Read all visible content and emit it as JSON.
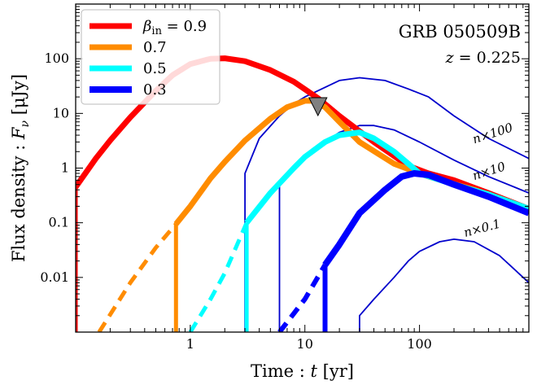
{
  "chart_data": {
    "type": "line",
    "x_scale": "log",
    "y_scale": "log",
    "xlim": [
      0.1,
      900
    ],
    "ylim": [
      0.001,
      1000
    ],
    "xlabel_main": "Time : ",
    "xlabel_var": "t",
    "xlabel_unit": " [yr]",
    "ylabel_main": "Flux density : ",
    "ylabel_var": "F",
    "ylabel_sub": "ν",
    "ylabel_unit": " [μJy]",
    "x_ticks": [
      {
        "value": 1,
        "label": "1"
      },
      {
        "value": 10,
        "label": "10"
      },
      {
        "value": 100,
        "label": "100"
      }
    ],
    "y_ticks": [
      {
        "value": 0.01,
        "label": "0.01"
      },
      {
        "value": 0.1,
        "label": "0.1"
      },
      {
        "value": 1,
        "label": "1"
      },
      {
        "value": 10,
        "label": "10"
      },
      {
        "value": 100,
        "label": "100"
      }
    ],
    "annotations": {
      "grb": "GRB 050509B",
      "redshift_var": "z",
      "redshift_val": " = 0.225"
    },
    "legend": {
      "placement": "top-left",
      "first_prefix": "β",
      "first_sub": "in",
      "first_suffix": " = 0.9"
    },
    "series": [
      {
        "name": "0.9",
        "color": "#ff0000",
        "width": 7,
        "solid": [
          [
            0.1,
            0.45
          ],
          [
            0.15,
            1.5
          ],
          [
            0.2,
            3.2
          ],
          [
            0.3,
            8.5
          ],
          [
            0.5,
            26
          ],
          [
            0.7,
            50
          ],
          [
            1,
            80
          ],
          [
            1.5,
            100
          ],
          [
            2,
            102
          ],
          [
            3,
            90
          ],
          [
            5,
            62
          ],
          [
            8,
            38
          ],
          [
            13,
            19
          ],
          [
            20,
            9
          ],
          [
            40,
            3
          ],
          [
            80,
            1.1
          ],
          [
            120,
            0.8
          ],
          [
            200,
            0.6
          ],
          [
            400,
            0.35
          ],
          [
            900,
            0.18
          ]
        ],
        "dashed": [],
        "drop": [
          [
            0.1,
            0.45
          ],
          [
            0.1,
            0.001
          ]
        ]
      },
      {
        "name": "0.7",
        "color": "#ff8c00",
        "width": 7,
        "solid": [
          [
            0.75,
            0.095
          ],
          [
            1,
            0.2
          ],
          [
            1.5,
            0.65
          ],
          [
            2,
            1.3
          ],
          [
            3,
            3.2
          ],
          [
            5,
            8
          ],
          [
            7,
            13
          ],
          [
            10,
            17
          ],
          [
            12,
            17
          ],
          [
            15,
            13
          ],
          [
            20,
            7
          ],
          [
            30,
            3
          ],
          [
            60,
            1.2
          ],
          [
            120,
            0.7
          ],
          [
            300,
            0.4
          ],
          [
            900,
            0.18
          ]
        ],
        "dashed": [
          [
            0.16,
            0.001
          ],
          [
            0.3,
            0.008
          ],
          [
            0.5,
            0.035
          ],
          [
            0.75,
            0.095
          ]
        ],
        "drop": [
          [
            0.75,
            0.095
          ],
          [
            0.75,
            0.001
          ]
        ]
      },
      {
        "name": "0.5",
        "color": "#00ffff",
        "width": 7,
        "solid": [
          [
            3.1,
            0.1
          ],
          [
            5,
            0.35
          ],
          [
            8,
            1
          ],
          [
            10,
            1.6
          ],
          [
            15,
            3
          ],
          [
            20,
            4
          ],
          [
            30,
            4.5
          ],
          [
            40,
            3.5
          ],
          [
            60,
            2
          ],
          [
            80,
            1.2
          ],
          [
            100,
            0.8
          ],
          [
            200,
            0.5
          ],
          [
            400,
            0.33
          ],
          [
            900,
            0.18
          ]
        ],
        "dashed": [
          [
            1,
            0.001
          ],
          [
            1.5,
            0.004
          ],
          [
            2,
            0.012
          ],
          [
            3.1,
            0.1
          ]
        ],
        "drop": [
          [
            3.1,
            0.1
          ],
          [
            3.1,
            0.001
          ]
        ]
      },
      {
        "name": "0.3",
        "color": "#0000ff",
        "width": 8,
        "solid": [
          [
            15,
            0.017
          ],
          [
            20,
            0.04
          ],
          [
            30,
            0.15
          ],
          [
            50,
            0.4
          ],
          [
            70,
            0.7
          ],
          [
            90,
            0.8
          ],
          [
            120,
            0.75
          ],
          [
            200,
            0.5
          ],
          [
            400,
            0.3
          ],
          [
            900,
            0.15
          ]
        ],
        "dashed": [
          [
            6,
            0.001
          ],
          [
            10,
            0.004
          ],
          [
            15,
            0.017
          ]
        ],
        "drop": [
          [
            15,
            0.017
          ],
          [
            15,
            0.001
          ]
        ]
      }
    ],
    "thin_curves": [
      {
        "label": "n×100",
        "points": [
          [
            3,
            0.001
          ],
          [
            3,
            0.8
          ],
          [
            4,
            3.5
          ],
          [
            6,
            9
          ],
          [
            8,
            15
          ],
          [
            10,
            20
          ],
          [
            15,
            30
          ],
          [
            20,
            40
          ],
          [
            30,
            45
          ],
          [
            50,
            40
          ],
          [
            80,
            28
          ],
          [
            120,
            20
          ],
          [
            200,
            9
          ],
          [
            400,
            3.5
          ],
          [
            900,
            1.5
          ]
        ]
      },
      {
        "label": "n×10",
        "points": [
          [
            6,
            0.001
          ],
          [
            6,
            0.5
          ],
          [
            8,
            1
          ],
          [
            10,
            1.6
          ],
          [
            15,
            3
          ],
          [
            20,
            4.5
          ],
          [
            30,
            6
          ],
          [
            40,
            6
          ],
          [
            60,
            5
          ],
          [
            100,
            3
          ],
          [
            200,
            1.4
          ],
          [
            400,
            0.7
          ],
          [
            900,
            0.35
          ]
        ]
      },
      {
        "label": "n×0.1",
        "points": [
          [
            30,
            0.001
          ],
          [
            30,
            0.002
          ],
          [
            40,
            0.004
          ],
          [
            60,
            0.01
          ],
          [
            80,
            0.02
          ],
          [
            100,
            0.03
          ],
          [
            150,
            0.045
          ],
          [
            200,
            0.05
          ],
          [
            300,
            0.045
          ],
          [
            500,
            0.025
          ],
          [
            900,
            0.008
          ]
        ]
      }
    ],
    "thin_color": "#0000cc",
    "thin_labels": [
      {
        "text": "n×100",
        "x": 300,
        "y": 2.8,
        "angle": -18
      },
      {
        "text": "n×10",
        "x": 300,
        "y": 0.6,
        "angle": -18
      },
      {
        "text": "n×0.1",
        "x": 250,
        "y": 0.055,
        "angle": -15
      }
    ],
    "marker": {
      "x": 13,
      "y": 12,
      "color": "#808080"
    }
  }
}
